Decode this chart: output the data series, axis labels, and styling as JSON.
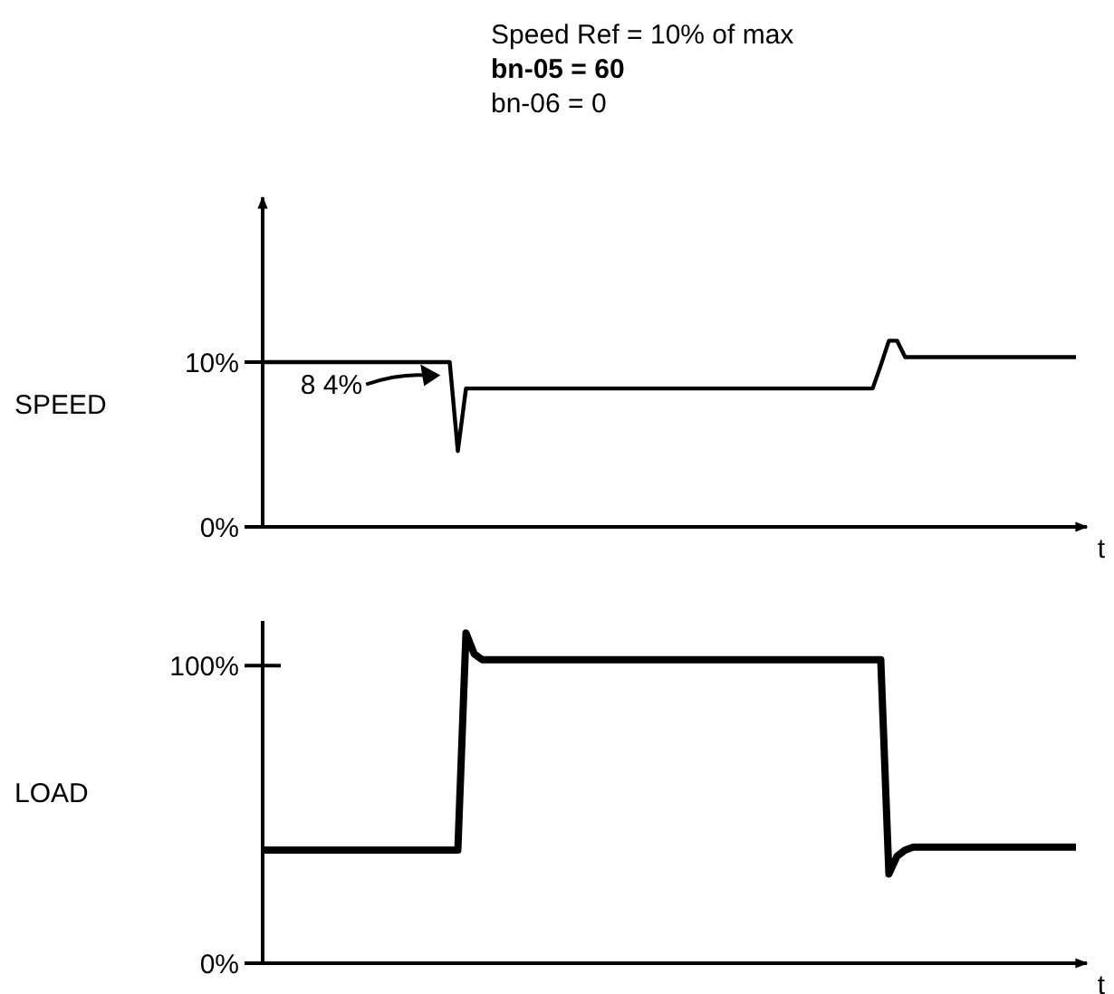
{
  "chart_data": [
    {
      "type": "line",
      "ylabel": "SPEED",
      "xlabel": "t",
      "annotations": [
        "Speed Ref  = 10% of max",
        "bn-05 = 60",
        "bn-06 = 0",
        "8 4%"
      ],
      "ylim": [
        0,
        20
      ],
      "yticks": [
        {
          "value": 10,
          "label": "10%"
        },
        {
          "value": 0,
          "label": "0%"
        }
      ],
      "line_style": "solid",
      "categories": [
        null,
        null,
        null,
        null,
        null,
        null,
        null,
        null,
        null,
        null,
        null,
        null,
        null,
        null,
        null,
        null,
        null,
        null,
        null,
        null,
        null,
        null,
        null,
        null,
        null,
        null,
        null,
        null,
        null,
        null,
        null,
        null,
        null,
        null,
        null,
        null,
        null,
        null,
        null,
        null,
        null,
        null,
        null,
        null,
        null,
        null,
        null,
        null,
        null,
        null,
        null,
        null,
        null,
        null,
        null,
        null,
        null,
        null,
        null,
        null,
        null,
        null,
        null,
        null,
        null,
        null,
        null,
        null,
        null,
        null,
        null,
        null,
        null,
        null,
        null,
        null,
        null,
        null,
        null,
        null,
        null,
        null,
        null,
        null,
        null,
        null,
        null,
        null,
        null,
        null,
        null,
        null,
        null,
        null,
        null,
        null,
        null,
        null,
        null,
        null,
        null
      ],
      "series": [
        {
          "color": "#000000",
          "values": [
            10,
            10,
            10,
            10,
            10,
            10,
            10,
            10,
            10,
            10,
            10,
            10,
            10,
            10,
            10,
            10,
            10,
            10,
            10,
            10,
            10,
            10,
            10,
            10,
            4.6,
            8.4,
            8.4,
            8.4,
            8.4,
            8.4,
            8.4,
            8.4,
            8.4,
            8.4,
            8.4,
            8.4,
            8.4,
            8.4,
            8.4,
            8.4,
            8.4,
            8.4,
            8.4,
            8.4,
            8.4,
            8.4,
            8.4,
            8.4,
            8.4,
            8.4,
            8.4,
            8.4,
            8.4,
            8.4,
            8.4,
            8.4,
            8.4,
            8.4,
            8.4,
            8.4,
            8.4,
            8.4,
            8.4,
            8.4,
            8.4,
            8.4,
            8.4,
            8.4,
            8.4,
            8.4,
            8.4,
            8.4,
            8.4,
            8.4,
            8.4,
            8.4,
            9.8,
            11.3,
            11.3,
            10.3,
            10.3,
            10.3,
            10.3,
            10.3,
            10.3,
            10.3,
            10.3,
            10.3,
            10.3,
            10.3,
            10.3,
            10.3,
            10.3,
            10.3,
            10.3,
            10.3,
            10.3,
            10.3,
            10.3,
            10.3,
            10.3
          ]
        }
      ]
    },
    {
      "type": "line",
      "ylabel": "LOAD",
      "xlabel": "t",
      "ylim": [
        0,
        115
      ],
      "yticks": [
        {
          "value": 100,
          "label": "100%"
        },
        {
          "value": 0,
          "label": "0%"
        }
      ],
      "line_style": "solid",
      "categories": [
        null,
        null,
        null,
        null,
        null,
        null,
        null,
        null,
        null,
        null,
        null,
        null,
        null,
        null,
        null,
        null,
        null,
        null,
        null,
        null,
        null,
        null,
        null,
        null,
        null,
        null,
        null,
        null,
        null,
        null,
        null,
        null,
        null,
        null,
        null,
        null,
        null,
        null,
        null,
        null,
        null,
        null,
        null,
        null,
        null,
        null,
        null,
        null,
        null,
        null,
        null,
        null,
        null,
        null,
        null,
        null,
        null,
        null,
        null,
        null,
        null,
        null,
        null,
        null,
        null,
        null,
        null,
        null,
        null,
        null,
        null,
        null,
        null,
        null,
        null,
        null,
        null,
        null,
        null,
        null,
        null,
        null,
        null,
        null,
        null,
        null,
        null,
        null,
        null,
        null,
        null,
        null,
        null,
        null,
        null,
        null,
        null,
        null,
        null,
        null,
        null
      ],
      "series": [
        {
          "color": "#000000",
          "values": [
            38,
            38,
            38,
            38,
            38,
            38,
            38,
            38,
            38,
            38,
            38,
            38,
            38,
            38,
            38,
            38,
            38,
            38,
            38,
            38,
            38,
            38,
            38,
            38,
            38,
            111,
            104,
            102,
            102,
            102,
            102,
            102,
            102,
            102,
            102,
            102,
            102,
            102,
            102,
            102,
            102,
            102,
            102,
            102,
            102,
            102,
            102,
            102,
            102,
            102,
            102,
            102,
            102,
            102,
            102,
            102,
            102,
            102,
            102,
            102,
            102,
            102,
            102,
            102,
            102,
            102,
            102,
            102,
            102,
            102,
            102,
            102,
            102,
            102,
            102,
            102,
            102,
            30,
            36,
            38,
            39,
            39,
            39,
            39,
            39,
            39,
            39,
            39,
            39,
            39,
            39,
            39,
            39,
            39,
            39,
            39,
            39,
            39,
            39,
            39,
            39
          ]
        }
      ]
    }
  ]
}
